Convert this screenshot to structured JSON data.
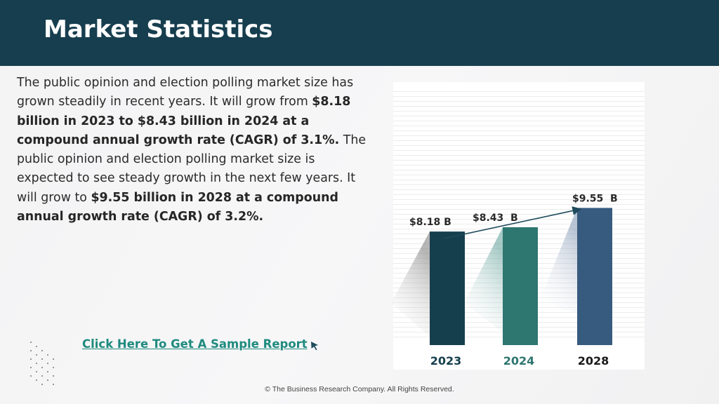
{
  "header": {
    "title": "Market Statistics"
  },
  "body": {
    "t1": "The public opinion and election polling market size has grown steadily in recent years. It will grow from ",
    "b1": "$8.18 billion in 2023 to $8.43 billion in 2024 at a compound annual growth rate (CAGR) of 3.1%.",
    "t2": " The public opinion and election polling market size is expected to see steady growth in the next few years. It will grow to ",
    "b2": "$9.55 billion in 2028 at a compound annual growth rate (CAGR) of 3.2%."
  },
  "chart_data": {
    "type": "bar",
    "categories": [
      "2023",
      "2024",
      "2028"
    ],
    "values": [
      8.18,
      8.43,
      9.55
    ],
    "value_labels": [
      "$8.18 B",
      "$8.43  B",
      "$9.55  B"
    ],
    "colors": [
      "#163f4e",
      "#2e7670",
      "#375b7e"
    ],
    "category_label_colors": [
      "#163f4e",
      "#2e7670",
      "#1a1a1a"
    ],
    "title": "",
    "xlabel": "",
    "ylabel": "",
    "trend_arrow": true
  },
  "cta": {
    "label": "Click Here To Get A Sample Report"
  },
  "footer": {
    "text": "© The Business Research Company. All Rights Reserved."
  },
  "icons": {
    "cursor": "cursor-arrow-icon",
    "decoration": "dot-pattern-icon"
  }
}
